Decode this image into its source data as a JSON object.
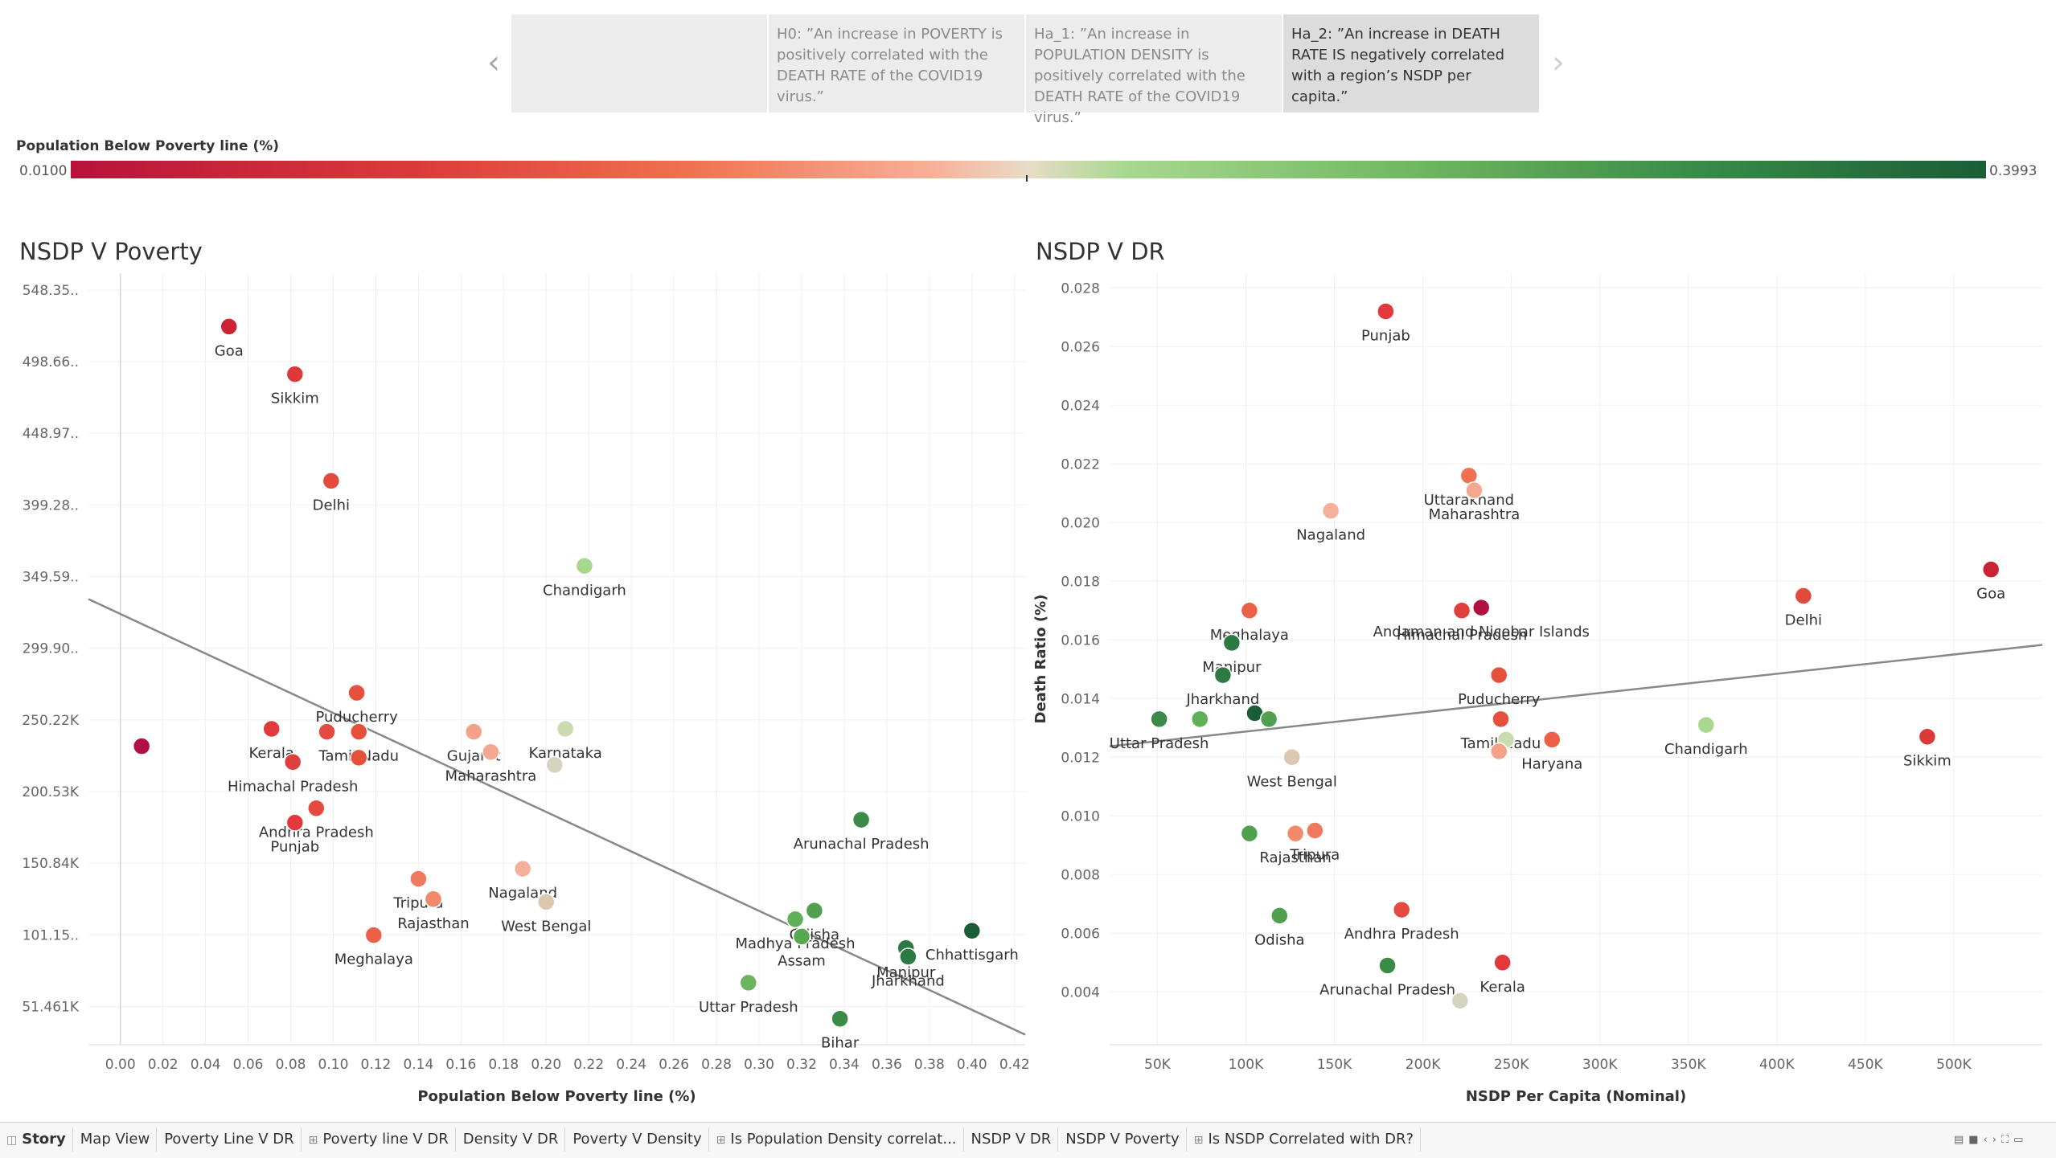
{
  "story_points": [
    {
      "text": ""
    },
    {
      "text": "H0: ”An increase in POVERTY is positively correlated with the DEATH RATE of the COVID19 virus.”"
    },
    {
      "text": "Ha_1: ”An increase in POPULATION DENSITY is positively correlated with the DEATH RATE of the COVID19 virus.”"
    },
    {
      "text": "Ha_2: ”An increase in DEATH RATE IS negatively correlated with a region’s NSDP per capita.”"
    }
  ],
  "legend": {
    "title": "Population Below Poverty line (%)",
    "min": "0.0100",
    "max": "0.3993",
    "colors": [
      "#b8123a",
      "#dc3a3a",
      "#f07050",
      "#f8b098",
      "#e8dcc8",
      "#a8d890",
      "#70b860",
      "#3a8a48",
      "#1a5e36"
    ]
  },
  "charts": {
    "left_title": "NSDP V Poverty",
    "right_title": "NSDP V DR"
  },
  "chart_data": [
    {
      "type": "scatter",
      "title": "NSDP V Poverty",
      "xlabel": "Population Below Poverty line (%)",
      "ylabel": "",
      "xlim": [
        -0.015,
        0.425
      ],
      "ylim": [
        25000,
        560000
      ],
      "xticks": [
        "0.00",
        "0.02",
        "0.04",
        "0.06",
        "0.08",
        "0.10",
        "0.12",
        "0.14",
        "0.16",
        "0.18",
        "0.20",
        "0.22",
        "0.24",
        "0.26",
        "0.28",
        "0.30",
        "0.32",
        "0.34",
        "0.36",
        "0.38",
        "0.40",
        "0.42"
      ],
      "xtick_values": [
        0,
        0.02,
        0.04,
        0.06,
        0.08,
        0.1,
        0.12,
        0.14,
        0.16,
        0.18,
        0.2,
        0.22,
        0.24,
        0.26,
        0.28,
        0.3,
        0.32,
        0.34,
        0.36,
        0.38,
        0.4,
        0.42
      ],
      "yticks": [
        "548.35..",
        "498.66..",
        "448.97..",
        "399.28..",
        "349.59..",
        "299.90..",
        "250.22K",
        "200.53K",
        "150.84K",
        "101.15..",
        "51.461K"
      ],
      "ytick_values": [
        548350,
        498660,
        448970,
        399280,
        349590,
        299900,
        250220,
        200530,
        150840,
        101150,
        51461
      ],
      "trend": [
        [
          -0.015,
          334000
        ],
        [
          0.425,
          32000
        ]
      ],
      "points": [
        {
          "label": "Goa",
          "x": 0.051,
          "y": 523000,
          "color": "#cc2236"
        },
        {
          "label": "Sikkim",
          "x": 0.082,
          "y": 490000,
          "color": "#dc3a3a"
        },
        {
          "label": "Delhi",
          "x": 0.099,
          "y": 416000,
          "color": "#e24a3e"
        },
        {
          "label": "Chandigarh",
          "x": 0.218,
          "y": 357000,
          "color": "#a8d890"
        },
        {
          "label": "Puducherry",
          "x": 0.111,
          "y": 269000,
          "color": "#e8503e"
        },
        {
          "label": "Kerala",
          "x": 0.071,
          "y": 244000,
          "color": "#e23a3c"
        },
        {
          "label": "",
          "x": 0.097,
          "y": 242000,
          "color": "#e44a40"
        },
        {
          "label": "Tamil Nadu",
          "x": 0.112,
          "y": 242000,
          "color": "#e8503e"
        },
        {
          "label": "",
          "x": 0.01,
          "y": 232000,
          "color": "#b01140"
        },
        {
          "label": "Himachal Pradesh",
          "x": 0.081,
          "y": 221000,
          "color": "#e0403c"
        },
        {
          "label": "",
          "x": 0.112,
          "y": 224000,
          "color": "#e8503e"
        },
        {
          "label": "Gujarat",
          "x": 0.166,
          "y": 242000,
          "color": "#f5a088"
        },
        {
          "label": "Maharashtra",
          "x": 0.174,
          "y": 228000,
          "color": "#f5a890"
        },
        {
          "label": "Karnataka",
          "x": 0.209,
          "y": 244000,
          "color": "#c8dcb0"
        },
        {
          "label": "",
          "x": 0.204,
          "y": 219000,
          "color": "#d4d4c0"
        },
        {
          "label": "Andhra Pradesh",
          "x": 0.092,
          "y": 189000,
          "color": "#e44a40"
        },
        {
          "label": "Punjab",
          "x": 0.082,
          "y": 179000,
          "color": "#e23a3c"
        },
        {
          "label": "Arunachal Pradesh",
          "x": 0.348,
          "y": 181000,
          "color": "#3a8a48"
        },
        {
          "label": "Nagaland",
          "x": 0.189,
          "y": 147000,
          "color": "#f6b09a"
        },
        {
          "label": "Tripura",
          "x": 0.14,
          "y": 140000,
          "color": "#f07a60"
        },
        {
          "label": "Rajasthan",
          "x": 0.147,
          "y": 126000,
          "color": "#f08a68"
        },
        {
          "label": "West Bengal",
          "x": 0.2,
          "y": 124000,
          "color": "#dcc8b0"
        },
        {
          "label": "Meghalaya",
          "x": 0.119,
          "y": 101000,
          "color": "#ec6048"
        },
        {
          "label": "Odisha",
          "x": 0.326,
          "y": 118000,
          "color": "#50a050"
        },
        {
          "label": "Madhya Pradesh",
          "x": 0.317,
          "y": 112000,
          "color": "#60b058"
        },
        {
          "label": "Assam",
          "x": 0.32,
          "y": 100000,
          "color": "#58a850"
        },
        {
          "label": "Manipur",
          "x": 0.369,
          "y": 92000,
          "color": "#2a7a42"
        },
        {
          "label": "Jharkhand",
          "x": 0.37,
          "y": 86000,
          "color": "#2a7a42"
        },
        {
          "label": "Chhattisgarh",
          "x": 0.4,
          "y": 104000,
          "color": "#1a5e36"
        },
        {
          "label": "Uttar Pradesh",
          "x": 0.295,
          "y": 68000,
          "color": "#6cb460"
        },
        {
          "label": "Bihar",
          "x": 0.338,
          "y": 43000,
          "color": "#3a8a48"
        }
      ]
    },
    {
      "type": "scatter",
      "title": "NSDP V DR",
      "xlabel": "NSDP Per Capita (Nominal)",
      "ylabel": "Death Ratio (%)",
      "xlim": [
        23000,
        550000
      ],
      "ylim": [
        0.0022,
        0.0285
      ],
      "xticks": [
        "50K",
        "100K",
        "150K",
        "200K",
        "250K",
        "300K",
        "350K",
        "400K",
        "450K",
        "500K"
      ],
      "xtick_values": [
        50000,
        100000,
        150000,
        200000,
        250000,
        300000,
        350000,
        400000,
        450000,
        500000
      ],
      "yticks": [
        "0.028",
        "0.026",
        "0.024",
        "0.022",
        "0.020",
        "0.018",
        "0.016",
        "0.014",
        "0.012",
        "0.010",
        "0.008",
        "0.006",
        "0.004"
      ],
      "ytick_values": [
        0.028,
        0.026,
        0.024,
        0.022,
        0.02,
        0.018,
        0.016,
        0.014,
        0.012,
        0.01,
        0.008,
        0.006,
        0.004
      ],
      "trend": [
        [
          23000,
          0.01237
        ],
        [
          550000,
          0.01583
        ]
      ],
      "points": [
        {
          "label": "Punjab",
          "x": 179000,
          "y": 0.0272,
          "color": "#e23a3c"
        },
        {
          "label": "Uttarakhand",
          "x": 226000,
          "y": 0.0216,
          "color": "#f07050"
        },
        {
          "label": "Maharashtra",
          "x": 229000,
          "y": 0.0211,
          "color": "#f5a890"
        },
        {
          "label": "Nagaland",
          "x": 148000,
          "y": 0.0204,
          "color": "#f6b09a"
        },
        {
          "label": "Goa",
          "x": 521000,
          "y": 0.0184,
          "color": "#cc2236"
        },
        {
          "label": "Delhi",
          "x": 415000,
          "y": 0.0175,
          "color": "#e24a3e"
        },
        {
          "label": "Meghalaya",
          "x": 102000,
          "y": 0.017,
          "color": "#ec6048"
        },
        {
          "label": "Himachal Pradesh",
          "x": 222000,
          "y": 0.017,
          "color": "#e0403c"
        },
        {
          "label": "Andaman and Nicobar Islands",
          "x": 233000,
          "y": 0.0171,
          "color": "#b01140"
        },
        {
          "label": "Manipur",
          "x": 92000,
          "y": 0.0159,
          "color": "#2a7a42"
        },
        {
          "label": "Jharkhand",
          "x": 87000,
          "y": 0.0148,
          "color": "#2a7a42"
        },
        {
          "label": "Puducherry",
          "x": 243000,
          "y": 0.0148,
          "color": "#e8503e"
        },
        {
          "label": "Uttar Pradesh",
          "x": 51000,
          "y": 0.0133,
          "color": "#3a8a48"
        },
        {
          "label": "",
          "x": 74000,
          "y": 0.0133,
          "color": "#60b058"
        },
        {
          "label": "",
          "x": 105000,
          "y": 0.0135,
          "color": "#1a5e36"
        },
        {
          "label": "",
          "x": 113000,
          "y": 0.0133,
          "color": "#50a050"
        },
        {
          "label": "Tamil Nadu",
          "x": 244000,
          "y": 0.0133,
          "color": "#e8503e"
        },
        {
          "label": "",
          "x": 247000,
          "y": 0.0126,
          "color": "#c8dcb0"
        },
        {
          "label": "",
          "x": 243000,
          "y": 0.0122,
          "color": "#f5a088"
        },
        {
          "label": "Haryana",
          "x": 273000,
          "y": 0.0126,
          "color": "#ec6048"
        },
        {
          "label": "Chandigarh",
          "x": 360000,
          "y": 0.0131,
          "color": "#a8d890"
        },
        {
          "label": "Sikkim",
          "x": 485000,
          "y": 0.0127,
          "color": "#dc3a3a"
        },
        {
          "label": "West Bengal",
          "x": 126000,
          "y": 0.012,
          "color": "#dcc8b0"
        },
        {
          "label": "",
          "x": 102000,
          "y": 0.0094,
          "color": "#50a050"
        },
        {
          "label": "Rajasthan",
          "x": 128000,
          "y": 0.0094,
          "color": "#f08a68"
        },
        {
          "label": "Tripura",
          "x": 139000,
          "y": 0.0095,
          "color": "#f07a60"
        },
        {
          "label": "Odisha",
          "x": 119000,
          "y": 0.0066,
          "color": "#50a050"
        },
        {
          "label": "Andhra Pradesh",
          "x": 188000,
          "y": 0.0068,
          "color": "#e44a40"
        },
        {
          "label": "Arunachal Pradesh",
          "x": 180000,
          "y": 0.0049,
          "color": "#3a8a48"
        },
        {
          "label": "Kerala",
          "x": 245000,
          "y": 0.005,
          "color": "#e23a3c"
        },
        {
          "label": "",
          "x": 221000,
          "y": 0.0037,
          "color": "#d4d4c0"
        }
      ]
    }
  ],
  "tabs": [
    {
      "label": "Story",
      "icon": "story-icon"
    },
    {
      "label": "Map View"
    },
    {
      "label": "Poverty Line V DR"
    },
    {
      "label": "Poverty line V DR",
      "icon": "dashboard-icon"
    },
    {
      "label": "Density V DR"
    },
    {
      "label": "Poverty V Density"
    },
    {
      "label": "Is Population Density correlat...",
      "icon": "dashboard-icon"
    },
    {
      "label": "NSDP V DR"
    },
    {
      "label": "NSDP V Poverty"
    },
    {
      "label": "Is NSDP Correlated with DR?",
      "icon": "dashboard-icon"
    }
  ]
}
